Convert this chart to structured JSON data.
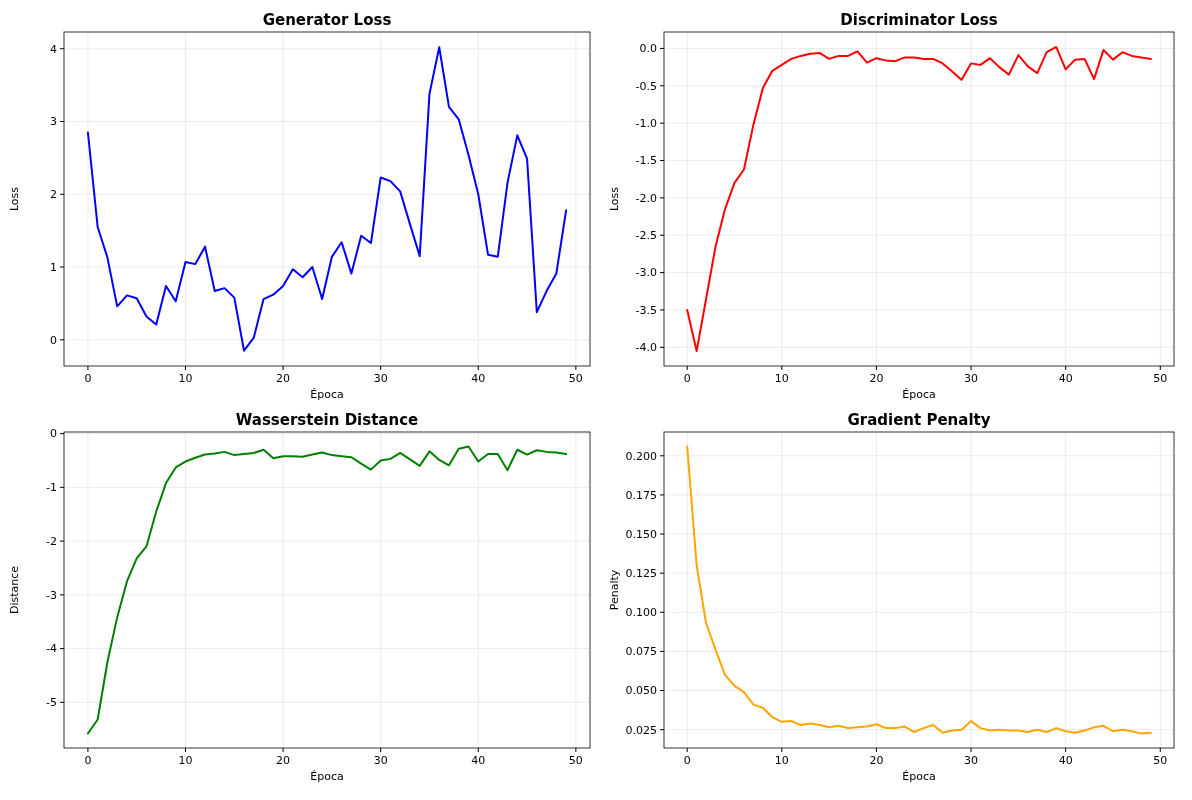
{
  "chart_data": [
    {
      "type": "line",
      "title": "Generator Loss",
      "xlabel": "Época",
      "ylabel": "Loss",
      "x": [
        0,
        1,
        2,
        3,
        4,
        5,
        6,
        7,
        8,
        9,
        10,
        11,
        12,
        13,
        14,
        15,
        16,
        17,
        18,
        19,
        20,
        21,
        22,
        23,
        24,
        25,
        26,
        27,
        28,
        29,
        30,
        31,
        32,
        33,
        34,
        35,
        36,
        37,
        38,
        39,
        40,
        41,
        42,
        43,
        44,
        45,
        46,
        47,
        48,
        49
      ],
      "series": [
        {
          "color": "#0000ff",
          "values": [
            2.85,
            1.55,
            1.13,
            0.46,
            0.61,
            0.57,
            0.32,
            0.21,
            0.74,
            0.53,
            1.07,
            1.04,
            1.28,
            0.67,
            0.71,
            0.58,
            -0.15,
            0.03,
            0.56,
            0.62,
            0.74,
            0.97,
            0.86,
            1.0,
            0.56,
            1.14,
            1.34,
            0.91,
            1.43,
            1.33,
            2.23,
            2.18,
            2.04,
            1.59,
            1.15,
            3.38,
            4.02,
            3.2,
            3.03,
            2.54,
            2.0,
            1.17,
            1.14,
            2.16,
            2.81,
            2.49,
            0.38,
            0.67,
            0.91,
            1.78
          ]
        }
      ],
      "xlim": [
        -2.45,
        51.45
      ],
      "xticks": [
        0,
        10,
        20,
        30,
        40,
        50
      ],
      "ylim": [
        -0.36,
        4.23
      ],
      "yticks": [
        0,
        1,
        2,
        3,
        4
      ],
      "grid": true,
      "line_style": "solid"
    },
    {
      "type": "line",
      "title": "Discriminator Loss",
      "xlabel": "Época",
      "ylabel": "Loss",
      "x": [
        0,
        1,
        2,
        3,
        4,
        5,
        6,
        7,
        8,
        9,
        10,
        11,
        12,
        13,
        14,
        15,
        16,
        17,
        18,
        19,
        20,
        21,
        22,
        23,
        24,
        25,
        26,
        27,
        28,
        29,
        30,
        31,
        32,
        33,
        34,
        35,
        36,
        37,
        38,
        39,
        40,
        41,
        42,
        43,
        44,
        45,
        46,
        47,
        48,
        49
      ],
      "series": [
        {
          "color": "#ff0000",
          "values": [
            -3.5,
            -4.05,
            -3.35,
            -2.65,
            -2.15,
            -1.8,
            -1.62,
            -1.02,
            -0.53,
            -0.3,
            -0.22,
            -0.14,
            -0.1,
            -0.07,
            -0.06,
            -0.14,
            -0.1,
            -0.1,
            -0.04,
            -0.19,
            -0.13,
            -0.16,
            -0.17,
            -0.12,
            -0.12,
            -0.14,
            -0.14,
            -0.2,
            -0.31,
            -0.42,
            -0.2,
            -0.22,
            -0.13,
            -0.25,
            -0.35,
            -0.09,
            -0.24,
            -0.33,
            -0.05,
            0.02,
            -0.28,
            -0.15,
            -0.14,
            -0.41,
            -0.02,
            -0.15,
            -0.05,
            -0.1,
            -0.12,
            -0.14
          ]
        }
      ],
      "xlim": [
        -2.45,
        51.45
      ],
      "xticks": [
        0,
        10,
        20,
        30,
        40,
        50
      ],
      "ylim": [
        -4.25,
        0.22
      ],
      "yticks": [
        {
          "value": -4,
          "label": "-4.0"
        },
        {
          "value": -3.5,
          "label": "-3.5"
        },
        {
          "value": -3,
          "label": "-3.0"
        },
        {
          "value": -2.5,
          "label": "-2.5"
        },
        {
          "value": -2,
          "label": "-2.0"
        },
        {
          "value": -1.5,
          "label": "-1.5"
        },
        {
          "value": -1,
          "label": "-1.0"
        },
        {
          "value": -0.5,
          "label": "-0.5"
        },
        {
          "value": 0,
          "label": "0.0"
        }
      ],
      "grid": true,
      "line_style": "solid"
    },
    {
      "type": "line",
      "title": "Wasserstein Distance",
      "xlabel": "Época",
      "ylabel": "Distance",
      "x": [
        0,
        1,
        2,
        3,
        4,
        5,
        6,
        7,
        8,
        9,
        10,
        11,
        12,
        13,
        14,
        15,
        16,
        17,
        18,
        19,
        20,
        21,
        22,
        23,
        24,
        25,
        26,
        27,
        28,
        29,
        30,
        31,
        32,
        33,
        34,
        35,
        36,
        37,
        38,
        39,
        40,
        41,
        42,
        43,
        44,
        45,
        46,
        47,
        48,
        49
      ],
      "series": [
        {
          "color": "#008000",
          "values": [
            -5.58,
            -5.32,
            -4.25,
            -3.42,
            -2.75,
            -2.32,
            -2.1,
            -1.45,
            -0.92,
            -0.63,
            -0.52,
            -0.45,
            -0.39,
            -0.37,
            -0.34,
            -0.4,
            -0.38,
            -0.36,
            -0.3,
            -0.46,
            -0.42,
            -0.42,
            -0.43,
            -0.39,
            -0.35,
            -0.4,
            -0.42,
            -0.44,
            -0.56,
            -0.67,
            -0.5,
            -0.47,
            -0.36,
            -0.48,
            -0.6,
            -0.33,
            -0.49,
            -0.59,
            -0.28,
            -0.24,
            -0.52,
            -0.38,
            -0.38,
            -0.68,
            -0.3,
            -0.39,
            -0.31,
            -0.34,
            -0.35,
            -0.38
          ]
        }
      ],
      "xlim": [
        -2.45,
        51.45
      ],
      "xticks": [
        0,
        10,
        20,
        30,
        40,
        50
      ],
      "ylim": [
        -5.85,
        0.03
      ],
      "yticks": [
        -5,
        -4,
        -3,
        -2,
        -1,
        0
      ],
      "grid": true,
      "line_style": "solid"
    },
    {
      "type": "line",
      "title": "Gradient Penalty",
      "xlabel": "Época",
      "ylabel": "Penalty",
      "x": [
        0,
        1,
        2,
        3,
        4,
        5,
        6,
        7,
        8,
        9,
        10,
        11,
        12,
        13,
        14,
        15,
        16,
        17,
        18,
        19,
        20,
        21,
        22,
        23,
        24,
        25,
        26,
        27,
        28,
        29,
        30,
        31,
        32,
        33,
        34,
        35,
        36,
        37,
        38,
        39,
        40,
        41,
        42,
        43,
        44,
        45,
        46,
        47,
        48,
        49
      ],
      "series": [
        {
          "color": "#ffa500",
          "values": [
            0.206,
            0.13,
            0.093,
            0.076,
            0.06,
            0.053,
            0.049,
            0.041,
            0.039,
            0.033,
            0.03,
            0.0305,
            0.028,
            0.029,
            0.028,
            0.0265,
            0.0275,
            0.026,
            0.0265,
            0.027,
            0.0285,
            0.026,
            0.026,
            0.027,
            0.0235,
            0.026,
            0.028,
            0.023,
            0.0245,
            0.025,
            0.0305,
            0.026,
            0.0245,
            0.025,
            0.0245,
            0.0245,
            0.0235,
            0.025,
            0.0235,
            0.026,
            0.024,
            0.023,
            0.0245,
            0.0265,
            0.0275,
            0.024,
            0.025,
            0.024,
            0.0225,
            0.023
          ]
        }
      ],
      "xlim": [
        -2.45,
        51.45
      ],
      "xticks": [
        0,
        10,
        20,
        30,
        40,
        50
      ],
      "ylim": [
        0.0133,
        0.2152
      ],
      "yticks": [
        {
          "value": 0.025,
          "label": "0.025"
        },
        {
          "value": 0.05,
          "label": "0.050"
        },
        {
          "value": 0.075,
          "label": "0.075"
        },
        {
          "value": 0.1,
          "label": "0.100"
        },
        {
          "value": 0.125,
          "label": "0.125"
        },
        {
          "value": 0.15,
          "label": "0.150"
        },
        {
          "value": 0.175,
          "label": "0.175"
        },
        {
          "value": 0.2,
          "label": "0.200"
        }
      ],
      "grid": true,
      "line_style": "solid"
    }
  ]
}
